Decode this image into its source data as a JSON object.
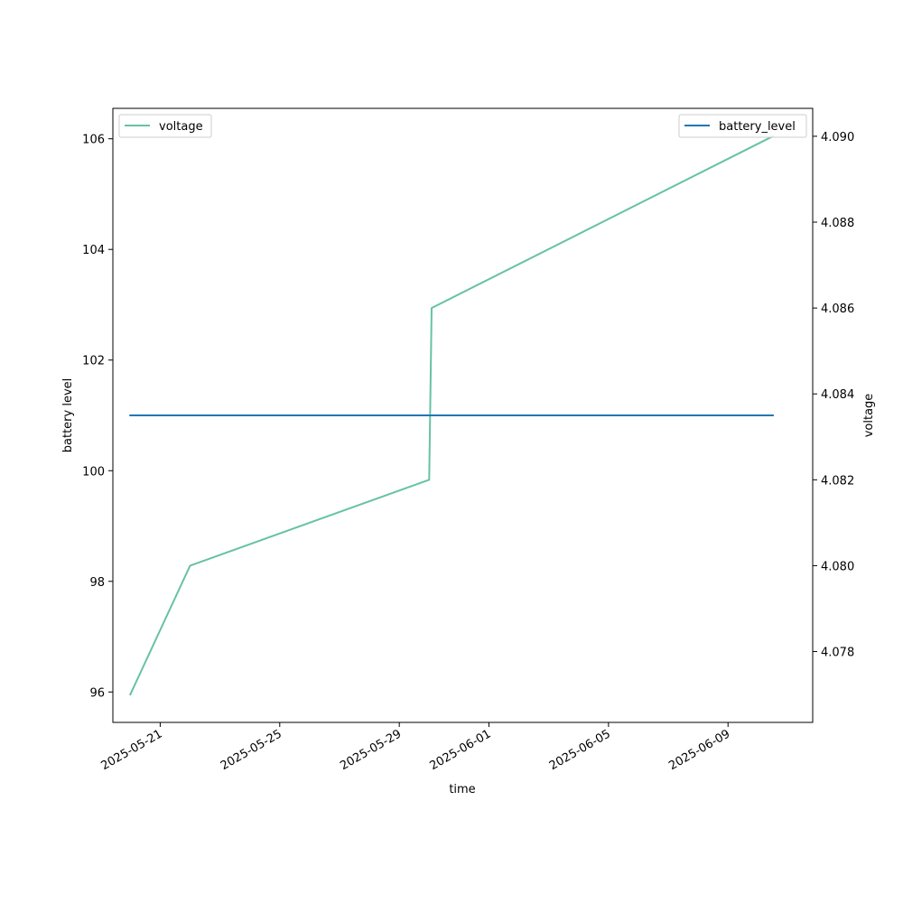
{
  "chart_data": {
    "type": "line",
    "title": "",
    "xlabel": "time",
    "ylabel_left": "battery level",
    "ylabel_right": "voltage",
    "x_ticks": [
      "2025-05-21",
      "2025-05-25",
      "2025-05-29",
      "2025-06-01",
      "2025-06-05",
      "2025-06-09"
    ],
    "y_left_ticks": [
      96,
      98,
      100,
      102,
      104,
      106
    ],
    "y_right_ticks": [
      "4.078",
      "4.080",
      "4.082",
      "4.084",
      "4.086",
      "4.088",
      "4.090"
    ],
    "x_range": [
      "2025-05-19T10:00",
      "2025-06-11T20:00"
    ],
    "y_left_range": [
      95.45,
      106.55
    ],
    "y_right_range": [
      4.07635,
      4.09065
    ],
    "grid": false,
    "series": [
      {
        "name": "voltage",
        "axis": "right",
        "color": "#66c2a5",
        "legend": "top-left",
        "points": [
          {
            "x": "2025-05-20T00:00",
            "y": 4.077
          },
          {
            "x": "2025-05-22T00:00",
            "y": 4.08
          },
          {
            "x": "2025-05-30T00:00",
            "y": 4.082
          },
          {
            "x": "2025-05-30T02:00",
            "y": 4.086
          },
          {
            "x": "2025-06-10T12:00",
            "y": 4.09
          }
        ]
      },
      {
        "name": "battery_level",
        "axis": "left",
        "color": "#1f77b4",
        "legend": "top-right",
        "points": [
          {
            "x": "2025-05-20T00:00",
            "y": 101
          },
          {
            "x": "2025-06-10T12:00",
            "y": 101
          }
        ]
      }
    ]
  }
}
